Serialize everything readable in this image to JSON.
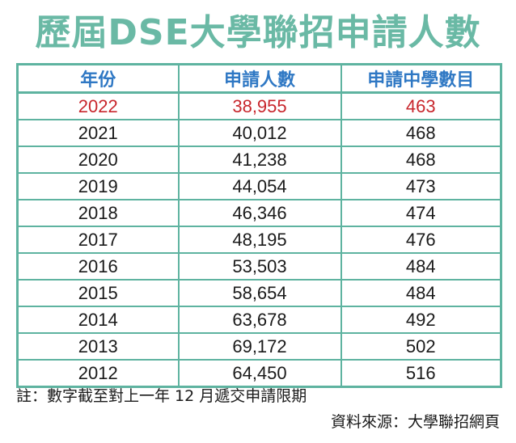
{
  "title": "歷屆DSE大學聯招申請人數",
  "table": {
    "headers": [
      "年份",
      "申請人數",
      "申請中學數目"
    ],
    "rows": [
      [
        "2022",
        "38,955",
        "463"
      ],
      [
        "2021",
        "40,012",
        "468"
      ],
      [
        "2020",
        "41,238",
        "468"
      ],
      [
        "2019",
        "44,054",
        "473"
      ],
      [
        "2018",
        "46,346",
        "474"
      ],
      [
        "2017",
        "48,195",
        "476"
      ],
      [
        "2016",
        "53,503",
        "484"
      ],
      [
        "2015",
        "58,654",
        "484"
      ],
      [
        "2014",
        "63,678",
        "492"
      ],
      [
        "2013",
        "69,172",
        "502"
      ],
      [
        "2012",
        "64,450",
        "516"
      ]
    ]
  },
  "note": "註：數字截至對上一年 12 月遞交申請限期",
  "source": "資料來源：大學聯招網頁",
  "colors": {
    "title": "#6ab9a5",
    "header_text": "#2f78c4",
    "highlight_row": "#c8262c",
    "grid": "#5eb3a0"
  }
}
